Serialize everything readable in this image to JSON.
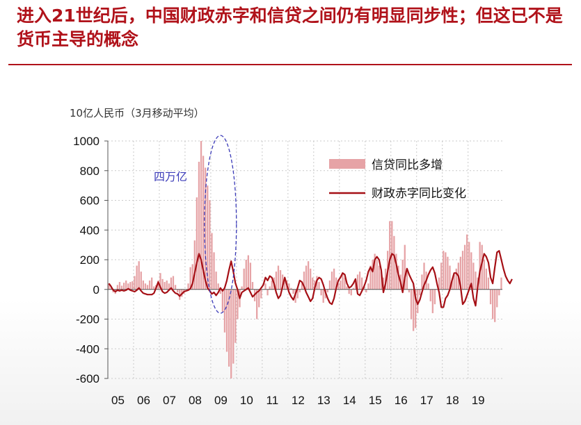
{
  "header": {
    "title": "进入21世纪后，中国财政赤字和信贷之间仍有明显同步性；但这已不是货币主导的概念"
  },
  "chart_data": {
    "type": "bar",
    "unit_label": "10亿人民币（3月移动平均）",
    "ylim": [
      -600,
      1000
    ],
    "yticks": [
      -600,
      -400,
      -200,
      0,
      200,
      400,
      600,
      800,
      1000
    ],
    "xticks": [
      "05",
      "06",
      "07",
      "08",
      "09",
      "10",
      "11",
      "12",
      "13",
      "14",
      "15",
      "16",
      "17",
      "18",
      "19"
    ],
    "xlim": [
      "2005-01",
      "2019-12"
    ],
    "grid": true,
    "legend_position": "top-right",
    "annotation": "四万亿",
    "colors": {
      "bars": "#e6a3a6",
      "line": "#a50f15",
      "annotation": "#3a3ab8"
    },
    "series": [
      {
        "name": "信贷同比多增",
        "type": "bar",
        "start": "2005-01",
        "frequency": "monthly",
        "values": [
          40,
          15,
          -20,
          -30,
          30,
          50,
          25,
          45,
          60,
          40,
          50,
          55,
          90,
          160,
          190,
          120,
          60,
          40,
          30,
          60,
          80,
          20,
          30,
          60,
          110,
          70,
          50,
          60,
          40,
          80,
          90,
          30,
          -20,
          -70,
          -50,
          -30,
          0,
          40,
          150,
          170,
          330,
          620,
          860,
          1000,
          900,
          820,
          700,
          600,
          380,
          250,
          120,
          40,
          -30,
          -150,
          -290,
          -420,
          -520,
          -600,
          -500,
          -360,
          -200,
          -120,
          20,
          140,
          200,
          230,
          180,
          50,
          -80,
          -200,
          -120,
          -60,
          0,
          40,
          -40,
          20,
          60,
          80,
          120,
          160,
          130,
          100,
          80,
          60,
          40,
          10,
          -30,
          -90,
          -60,
          -20,
          40,
          120,
          160,
          190,
          140,
          80,
          60,
          90,
          50,
          -40,
          -90,
          -60,
          -20,
          60,
          120,
          140,
          80,
          40,
          60,
          100,
          80,
          20,
          -30,
          -40,
          10,
          60,
          100,
          120,
          80,
          20,
          -20,
          40,
          160,
          200,
          240,
          200,
          160,
          120,
          80,
          140,
          260,
          460,
          460,
          360,
          240,
          160,
          100,
          200,
          300,
          120,
          -20,
          -200,
          -280,
          -260,
          -160,
          -40,
          100,
          180,
          120,
          40,
          -80,
          -160,
          -100,
          0,
          80,
          180,
          260,
          250,
          220,
          160,
          60,
          100,
          140,
          180,
          220,
          260,
          300,
          370,
          320,
          250,
          180,
          120,
          80,
          320,
          300,
          200,
          140,
          80,
          -100,
          -200,
          -220,
          -120,
          -40,
          80
        ]
      },
      {
        "name": "财政赤字同比变化",
        "type": "line",
        "start": "2005-01",
        "frequency": "monthly",
        "values": [
          40,
          20,
          -5,
          -15,
          -5,
          -10,
          -5,
          -10,
          -5,
          5,
          -5,
          -10,
          -15,
          -5,
          10,
          -10,
          -25,
          -30,
          -35,
          -35,
          -35,
          -25,
          10,
          50,
          15,
          -15,
          -25,
          -20,
          -5,
          10,
          -10,
          -25,
          -30,
          -45,
          -30,
          -15,
          -10,
          -5,
          5,
          40,
          110,
          180,
          240,
          200,
          130,
          60,
          10,
          -10,
          -30,
          -20,
          -40,
          -20,
          10,
          -10,
          10,
          60,
          130,
          190,
          120,
          40,
          0,
          -60,
          -20,
          -10,
          0,
          10,
          -20,
          -50,
          -35,
          -20,
          -10,
          10,
          30,
          80,
          60,
          90,
          80,
          40,
          -20,
          -60,
          -40,
          20,
          80,
          30,
          -20,
          -50,
          -70,
          -30,
          10,
          60,
          50,
          20,
          -20,
          -50,
          -80,
          -60,
          10,
          60,
          80,
          70,
          30,
          -20,
          -60,
          -90,
          -100,
          -60,
          10,
          60,
          80,
          110,
          100,
          40,
          10,
          20,
          40,
          70,
          -30,
          -40,
          -10,
          20,
          60,
          120,
          150,
          120,
          200,
          220,
          200,
          130,
          -20,
          40,
          120,
          200,
          240,
          230,
          170,
          100,
          50,
          -20,
          80,
          140,
          100,
          70,
          40,
          -60,
          -100,
          -70,
          -20,
          30,
          60,
          100,
          130,
          150,
          110,
          40,
          -20,
          -120,
          -120,
          -60,
          -40,
          0,
          60,
          110,
          110,
          90,
          20,
          -100,
          -80,
          -40,
          0,
          40,
          -60,
          -110,
          20,
          120,
          180,
          240,
          220,
          180,
          80,
          40,
          150,
          250,
          260,
          200,
          140,
          90,
          60,
          40,
          70
        ]
      }
    ]
  }
}
